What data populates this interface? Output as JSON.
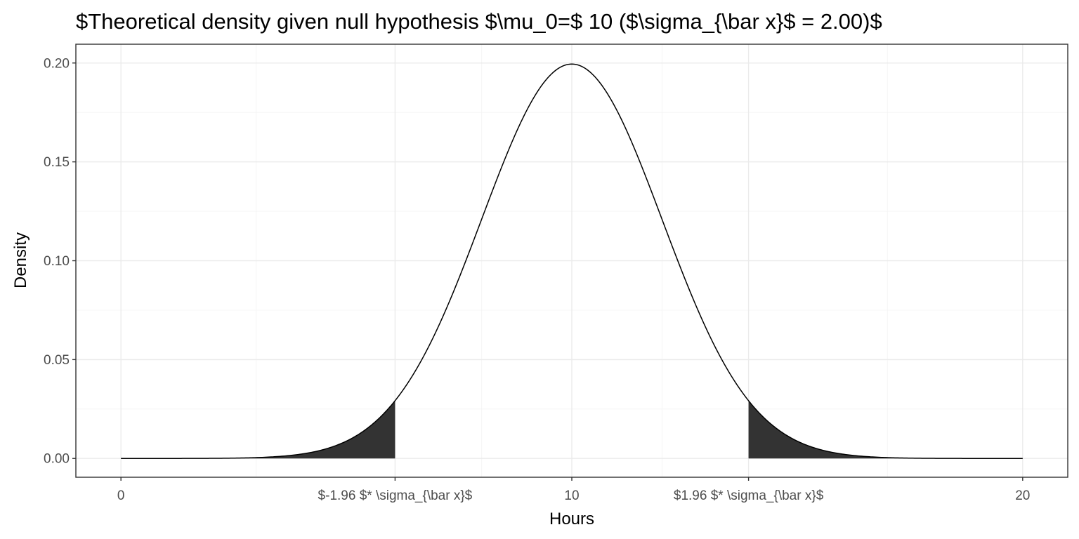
{
  "chart_data": {
    "type": "area",
    "title": "$Theoretical density given null hypothesis $\\mu_0=$ 10 ($\\sigma_{\\bar x}$ = 2.00)$",
    "xlabel": "Hours",
    "ylabel": "Density",
    "xlim": [
      -1,
      21
    ],
    "ylim": [
      -0.0095,
      0.2095
    ],
    "mu": 10,
    "sigma": 2.0,
    "curve_x_range": [
      0,
      20
    ],
    "critical_values": [
      6.08,
      13.92
    ],
    "shaded_tails": [
      [
        0,
        6.08
      ],
      [
        13.92,
        20
      ]
    ],
    "x_ticks": [
      {
        "value": 0,
        "label": "0"
      },
      {
        "value": 6.08,
        "label": "$-1.96 $* \\sigma_{\\bar x}$"
      },
      {
        "value": 10,
        "label": "10"
      },
      {
        "value": 13.92,
        "label": "$1.96 $* \\sigma_{\\bar x}$"
      },
      {
        "value": 20,
        "label": "20"
      }
    ],
    "x_minor_grid": [
      3,
      8,
      12,
      17
    ],
    "y_ticks": [
      {
        "value": 0.0,
        "label": "0.00"
      },
      {
        "value": 0.05,
        "label": "0.05"
      },
      {
        "value": 0.1,
        "label": "0.10"
      },
      {
        "value": 0.15,
        "label": "0.15"
      },
      {
        "value": 0.2,
        "label": "0.20"
      }
    ],
    "y_minor_grid": [
      0.025,
      0.075,
      0.125,
      0.175
    ],
    "grid": true,
    "colors": {
      "curve": "#000000",
      "tail_fill": "#333333",
      "panel_border": "#333333",
      "background": "#ffffff"
    }
  }
}
